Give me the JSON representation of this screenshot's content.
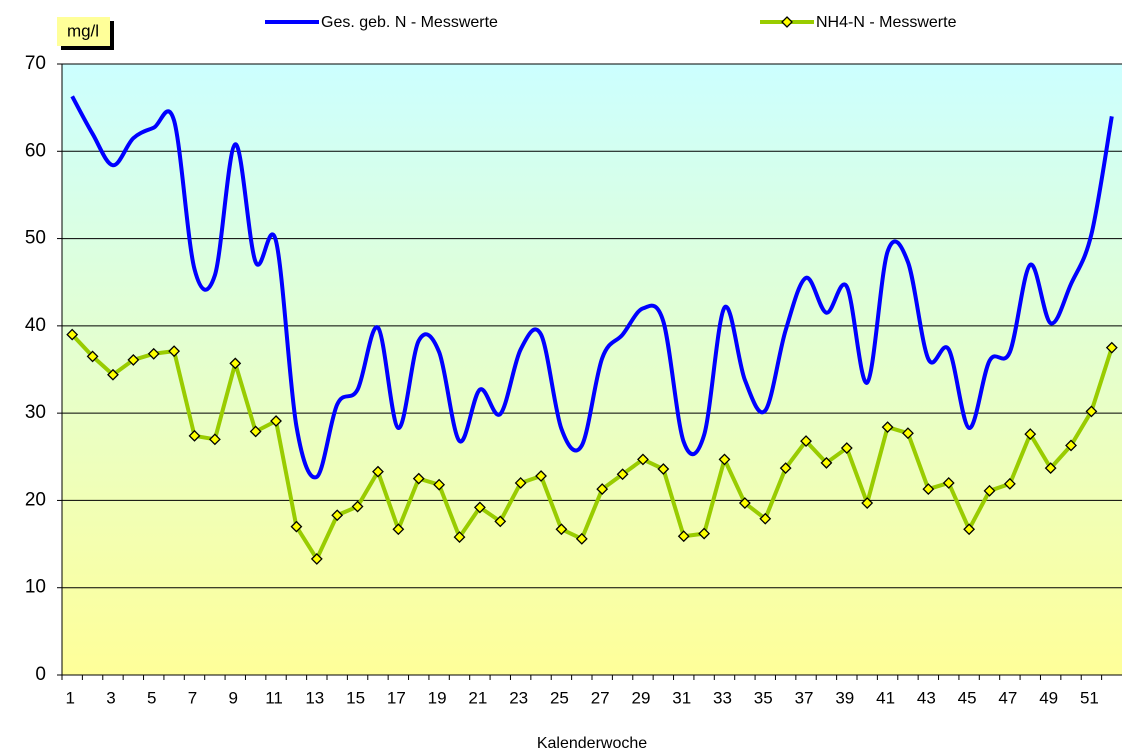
{
  "chart_data": {
    "type": "line",
    "y_label": "mg/l",
    "x_label": "Kalenderwoche",
    "categories": [
      1,
      null,
      3,
      null,
      5,
      null,
      7,
      null,
      9,
      null,
      11,
      null,
      13,
      null,
      15,
      null,
      17,
      null,
      19,
      null,
      21,
      null,
      23,
      null,
      25,
      null,
      27,
      null,
      29,
      null,
      31,
      null,
      33,
      null,
      35,
      null,
      37,
      null,
      39,
      null,
      41,
      null,
      43,
      null,
      45,
      null,
      47,
      null,
      49,
      null,
      51,
      null
    ],
    "series": [
      {
        "name": "Ges. geb. N - Messwerte",
        "color": "#0000ff",
        "smooth": true,
        "values": [
          66.3,
          62.0,
          58.4,
          61.5,
          62.7,
          63.5,
          46.5,
          45.8,
          60.8,
          47.3,
          49.7,
          28.5,
          22.7,
          31.0,
          32.7,
          39.8,
          28.3,
          38.3,
          37.0,
          26.8,
          32.7,
          29.9,
          37.3,
          39.0,
          28.2,
          26.3,
          36.3,
          39.0,
          42.0,
          40.5,
          26.7,
          27.5,
          42.1,
          33.8,
          30.3,
          39.5,
          45.5,
          41.5,
          44.5,
          33.5,
          48.5,
          47.3,
          36.2,
          37.3,
          28.3,
          36.0,
          37.0,
          47.0,
          40.3,
          44.8,
          50.5,
          64.0
        ]
      },
      {
        "name": "NH4-N - Messwerte",
        "color": "#99cc00",
        "marker": "diamond",
        "marker_color": "#ffff00",
        "values": [
          39.0,
          36.5,
          34.4,
          36.1,
          36.8,
          37.1,
          27.4,
          27.0,
          35.7,
          27.9,
          29.1,
          17.0,
          13.3,
          18.3,
          19.3,
          23.3,
          16.7,
          22.5,
          21.8,
          15.8,
          19.2,
          17.6,
          22.0,
          22.8,
          16.7,
          15.6,
          21.3,
          23.0,
          24.7,
          23.6,
          15.9,
          16.2,
          24.7,
          19.7,
          17.9,
          23.7,
          26.8,
          24.3,
          26.0,
          19.7,
          28.4,
          27.7,
          21.3,
          22.0,
          16.7,
          21.1,
          21.9,
          27.6,
          23.7,
          26.3,
          30.2,
          37.5
        ]
      }
    ],
    "ylim": [
      0,
      70
    ],
    "yticks": [
      0,
      10,
      20,
      30,
      40,
      50,
      60,
      70
    ],
    "grid": true,
    "legend": "top"
  }
}
